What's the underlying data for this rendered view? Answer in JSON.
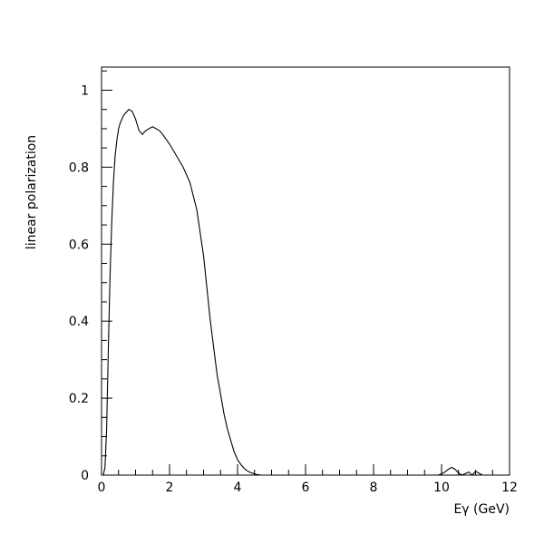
{
  "chart_data": {
    "type": "line",
    "title": "",
    "xlabel": "Eγ (GeV)",
    "ylabel": "linear polarization",
    "xlim": [
      0,
      12
    ],
    "ylim": [
      0,
      1.06
    ],
    "grid": false,
    "xticks": [
      0,
      2,
      4,
      6,
      8,
      10,
      12
    ],
    "xtick_labels": [
      "0",
      "2",
      "4",
      "6",
      "8",
      "10",
      "12"
    ],
    "yticks": [
      0,
      0.2,
      0.4,
      0.6,
      0.8,
      1
    ],
    "ytick_labels": [
      "0",
      "0.2",
      "0.4",
      "0.6",
      "0.8",
      "1"
    ],
    "series": [
      {
        "color": "#000000",
        "x": [
          0.05,
          0.1,
          0.15,
          0.2,
          0.25,
          0.3,
          0.35,
          0.4,
          0.45,
          0.5,
          0.55,
          0.6,
          0.65,
          0.7,
          0.8,
          0.9,
          1.0,
          1.1,
          1.2,
          1.3,
          1.4,
          1.5,
          1.6,
          1.7,
          1.8,
          2.0,
          2.2,
          2.4,
          2.6,
          2.8,
          3.0,
          3.2,
          3.4,
          3.5,
          3.6,
          3.7,
          3.8,
          3.9,
          4.0,
          4.1,
          4.2,
          4.3,
          4.4,
          4.5,
          4.6,
          4.7,
          4.8,
          5.0,
          6.0,
          8.0,
          9.9,
          10.0,
          10.1,
          10.2,
          10.3,
          10.4,
          10.5,
          10.6,
          10.7,
          10.8,
          10.9,
          11.0,
          11.1,
          11.2
        ],
        "y": [
          0.0,
          0.02,
          0.12,
          0.33,
          0.52,
          0.66,
          0.76,
          0.83,
          0.87,
          0.9,
          0.915,
          0.925,
          0.935,
          0.94,
          0.95,
          0.945,
          0.925,
          0.895,
          0.885,
          0.895,
          0.9,
          0.905,
          0.9,
          0.895,
          0.885,
          0.86,
          0.83,
          0.8,
          0.76,
          0.69,
          0.57,
          0.4,
          0.26,
          0.21,
          0.16,
          0.12,
          0.09,
          0.06,
          0.04,
          0.027,
          0.017,
          0.01,
          0.006,
          0.003,
          0.001,
          0.0,
          0.0,
          0.0,
          0.0,
          0.0,
          0.0,
          0.003,
          0.008,
          0.015,
          0.02,
          0.015,
          0.005,
          0.0,
          0.004,
          0.008,
          0.0,
          0.01,
          0.005,
          0.0
        ]
      }
    ]
  }
}
